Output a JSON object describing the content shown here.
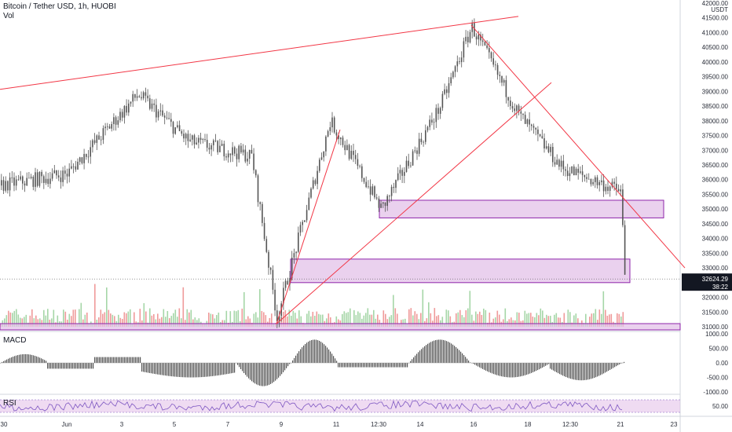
{
  "header": {
    "title": "Bitcoin / Tether USD, 1h, HUOBI",
    "sub": "Vol"
  },
  "panes": {
    "macd": "MACD",
    "rsi": "RSI"
  },
  "price_axis": {
    "unit": "USDT",
    "ticks": [
      "42000.00",
      "41500.00",
      "41000.00",
      "40500.00",
      "40000.00",
      "39500.00",
      "39000.00",
      "38500.00",
      "38000.00",
      "37500.00",
      "37000.00",
      "36500.00",
      "36000.00",
      "35500.00",
      "35000.00",
      "34500.00",
      "34000.00",
      "33500.00",
      "33000.00",
      "32000.00",
      "31500.00",
      "31000.00"
    ],
    "last_price": "32624.29",
    "countdown": "38:22"
  },
  "macd_axis": {
    "ticks": [
      "1000.00",
      "500.00",
      "0.00",
      "-500.00",
      "-1000.00"
    ]
  },
  "rsi_axis": {
    "ticks": [
      "50.00"
    ]
  },
  "time_axis": {
    "labels": [
      "30",
      "Jun",
      "3",
      "5",
      "7",
      "9",
      "11",
      "12:30",
      "14",
      "16",
      "18",
      "12:30",
      "21",
      "23"
    ]
  },
  "colors": {
    "candle": "#555555",
    "trendline": "#f23645",
    "zone_fill": "#e1bee7",
    "zone_border": "#8e24aa",
    "vol_up": "#a5d6a7",
    "vol_down": "#ef9a9a",
    "rsi_line": "#7e57c2",
    "macd_hist": "#555555"
  },
  "chart_data": {
    "type": "line",
    "title": "Bitcoin / Tether USD, 1h, HUOBI",
    "ylabel": "USDT",
    "ylim": [
      31000,
      42000
    ],
    "x": [
      "30",
      "Jun",
      "3",
      "5",
      "7",
      "9",
      "11",
      "12:30",
      "14",
      "16",
      "18",
      "12:30",
      "21",
      "23"
    ],
    "series": [
      {
        "name": "BTC/USDT",
        "values": [
          35800,
          36200,
          38900,
          37300,
          36800,
          31300,
          38000,
          35000,
          38500,
          41200,
          38200,
          36400,
          35600,
          32600
        ]
      }
    ],
    "zones": [
      [
        34700,
        35300
      ],
      [
        32500,
        33300
      ]
    ],
    "annotations": [
      "32624.29"
    ]
  }
}
